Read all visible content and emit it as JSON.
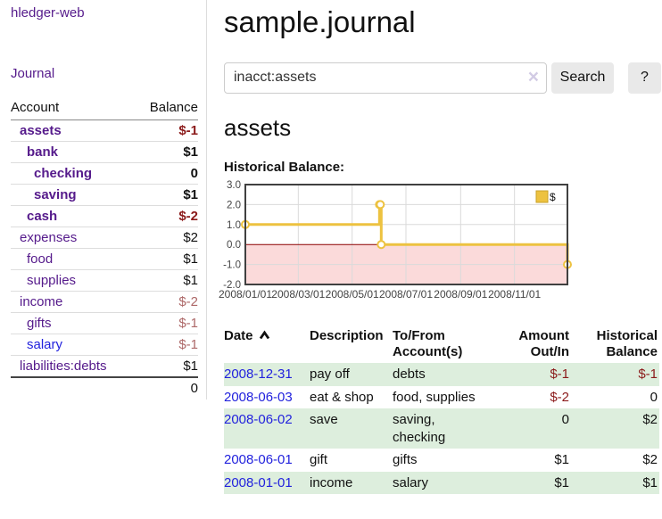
{
  "app": {
    "brand": "hledger-web",
    "nav": {
      "journal": "Journal"
    }
  },
  "colors": {
    "purple_link": "#551a8b",
    "blue_link": "#2222dd",
    "negative_strong": "#8b1a1a",
    "negative_weak": "#ad6868",
    "row_stripe_green": "#ddeedd",
    "button_gray": "#e9e9e9"
  },
  "sidebar": {
    "header": {
      "account": "Account",
      "balance": "Balance"
    },
    "accounts": [
      {
        "name": "assets",
        "depth": 0,
        "bold": true,
        "balance": "$-1",
        "balance_class": "neg-strong"
      },
      {
        "name": "bank",
        "depth": 1,
        "bold": true,
        "balance": "$1",
        "balance_class": ""
      },
      {
        "name": "checking",
        "depth": 2,
        "bold": true,
        "balance": "0",
        "balance_class": ""
      },
      {
        "name": "saving",
        "depth": 2,
        "bold": true,
        "balance": "$1",
        "balance_class": ""
      },
      {
        "name": "cash",
        "depth": 1,
        "bold": true,
        "balance": "$-2",
        "balance_class": "neg-strong"
      },
      {
        "name": "expenses",
        "depth": 0,
        "bold": false,
        "balance": "$2",
        "balance_class": ""
      },
      {
        "name": "food",
        "depth": 1,
        "bold": false,
        "balance": "$1",
        "balance_class": ""
      },
      {
        "name": "supplies",
        "depth": 1,
        "bold": false,
        "balance": "$1",
        "balance_class": ""
      },
      {
        "name": "income",
        "depth": 0,
        "bold": false,
        "balance": "$-2",
        "balance_class": "neg-weak"
      },
      {
        "name": "gifts",
        "depth": 1,
        "bold": false,
        "balance": "$-1",
        "balance_class": "neg-weak"
      },
      {
        "name": "salary",
        "depth": 1,
        "bold": false,
        "balance": "$-1",
        "balance_class": "neg-weak",
        "link_color": "blue"
      },
      {
        "name": "liabilities:debts",
        "depth": 0,
        "bold": false,
        "balance": "$1",
        "balance_class": ""
      }
    ],
    "total": "0"
  },
  "main": {
    "title": "sample.journal",
    "search": {
      "value": "inacct:assets",
      "clear_icon": "×",
      "search_button": "Search",
      "help_button": "?"
    },
    "account_title": "assets",
    "chart_label": "Historical Balance:"
  },
  "chart_data": {
    "type": "line",
    "step": true,
    "title": "Historical Balance",
    "series": [
      {
        "name": "$",
        "color": "#edc240",
        "points": [
          [
            "2008-01-01",
            1
          ],
          [
            "2008-06-01",
            2
          ],
          [
            "2008-06-02",
            2
          ],
          [
            "2008-06-03",
            0
          ],
          [
            "2008-12-31",
            -1
          ]
        ]
      }
    ],
    "x_ticks": [
      "2008/01/01",
      "2008/03/01",
      "2008/05/01",
      "2008/07/01",
      "2008/09/01",
      "2008/11/01"
    ],
    "y_ticks": [
      3,
      2,
      1,
      0,
      -1,
      -2
    ],
    "xlim": [
      "2008-01-01",
      "2008-12-31"
    ],
    "ylim": [
      -2,
      3
    ],
    "grid": true,
    "legend_position": "top-right",
    "colors": {
      "negative_region": "#fbdada",
      "zero_line": "#8b0000",
      "grid": "#dadada",
      "border": "#404040",
      "legend_border": "#c9a227",
      "tick_text": "#444444"
    }
  },
  "transactions": {
    "headers": [
      "Date",
      "Description",
      "To/From Account(s)",
      "Amount Out/In",
      "Historical Balance"
    ],
    "sort": {
      "column": "Date",
      "direction": "ascending"
    },
    "rows": [
      {
        "date": "2008-12-31",
        "description": "pay off",
        "accounts": "debts",
        "amount": "$-1",
        "amount_negative": true,
        "balance": "$-1",
        "balance_negative": true
      },
      {
        "date": "2008-06-03",
        "description": "eat & shop",
        "accounts": "food, supplies",
        "amount": "$-2",
        "amount_negative": true,
        "balance": "0",
        "balance_negative": false
      },
      {
        "date": "2008-06-02",
        "description": "save",
        "accounts": "saving, checking",
        "amount": "0",
        "amount_negative": false,
        "balance": "$2",
        "balance_negative": false
      },
      {
        "date": "2008-06-01",
        "description": "gift",
        "accounts": "gifts",
        "amount": "$1",
        "amount_negative": false,
        "balance": "$2",
        "balance_negative": false
      },
      {
        "date": "2008-01-01",
        "description": "income",
        "accounts": "salary",
        "amount": "$1",
        "amount_negative": false,
        "balance": "$1",
        "balance_negative": false
      }
    ]
  }
}
